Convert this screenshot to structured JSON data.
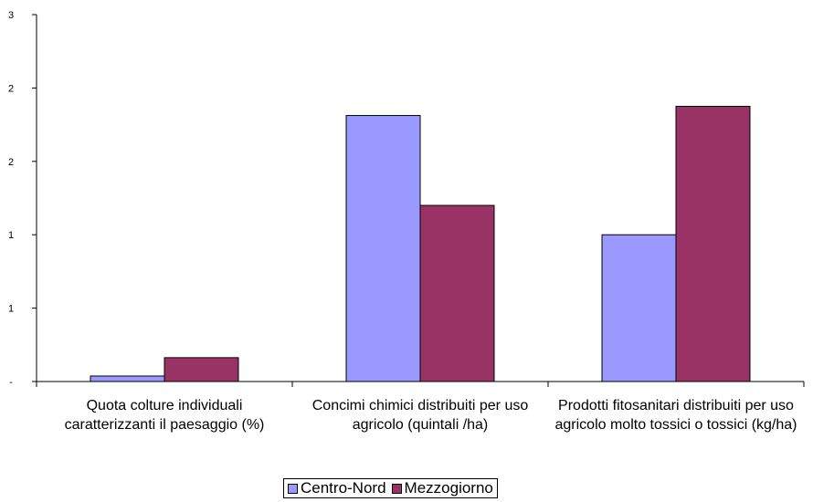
{
  "chart_data": {
    "type": "bar",
    "title": "",
    "xlabel": "",
    "ylabel": "",
    "y_ticks": [
      "-",
      "1",
      "1",
      "2",
      "2",
      "3"
    ],
    "ylim": [
      0,
      2.0
    ],
    "grid": false,
    "legend_position": "bottom",
    "categories": [
      "Quota colture individuali caratterizzanti il paesaggio (%)",
      "Concimi chimici distribuiti per uso agricolo (quintali /ha)",
      "Prodotti fitosanitari distribuiti per uso agricolo molto tossici o tossici (kg/ha)"
    ],
    "series": [
      {
        "name": "Centro-Nord",
        "color": "#9999ff",
        "values": [
          0.03,
          1.45,
          0.8
        ]
      },
      {
        "name": "Mezzogiorno",
        "color": "#993366",
        "values": [
          0.13,
          0.96,
          1.5
        ]
      }
    ]
  }
}
